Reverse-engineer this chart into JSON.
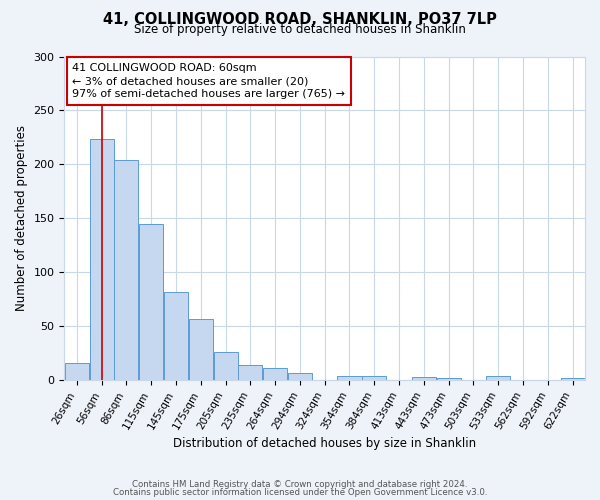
{
  "title": "41, COLLINGWOOD ROAD, SHANKLIN, PO37 7LP",
  "subtitle": "Size of property relative to detached houses in Shanklin",
  "xlabel": "Distribution of detached houses by size in Shanklin",
  "ylabel": "Number of detached properties",
  "bar_labels": [
    "26sqm",
    "56sqm",
    "86sqm",
    "115sqm",
    "145sqm",
    "175sqm",
    "205sqm",
    "235sqm",
    "264sqm",
    "294sqm",
    "324sqm",
    "354sqm",
    "384sqm",
    "413sqm",
    "443sqm",
    "473sqm",
    "503sqm",
    "533sqm",
    "562sqm",
    "592sqm",
    "622sqm"
  ],
  "bar_heights": [
    16,
    224,
    204,
    145,
    82,
    57,
    26,
    14,
    11,
    7,
    0,
    4,
    4,
    0,
    3,
    2,
    0,
    4,
    0,
    0,
    2
  ],
  "bar_color": "#c5d8f0",
  "bar_edge_color": "#5b9bd5",
  "vline_x": 1,
  "vline_color": "#cc0000",
  "ylim": [
    0,
    300
  ],
  "yticks": [
    0,
    50,
    100,
    150,
    200,
    250,
    300
  ],
  "annotation_title": "41 COLLINGWOOD ROAD: 60sqm",
  "annotation_line1": "← 3% of detached houses are smaller (20)",
  "annotation_line2": "97% of semi-detached houses are larger (765) →",
  "annotation_box_color": "#cc0000",
  "footer_line1": "Contains HM Land Registry data © Crown copyright and database right 2024.",
  "footer_line2": "Contains public sector information licensed under the Open Government Licence v3.0.",
  "bg_color": "#eef2f9",
  "plot_bg_color": "#ffffff",
  "grid_color": "#c8d8e8"
}
